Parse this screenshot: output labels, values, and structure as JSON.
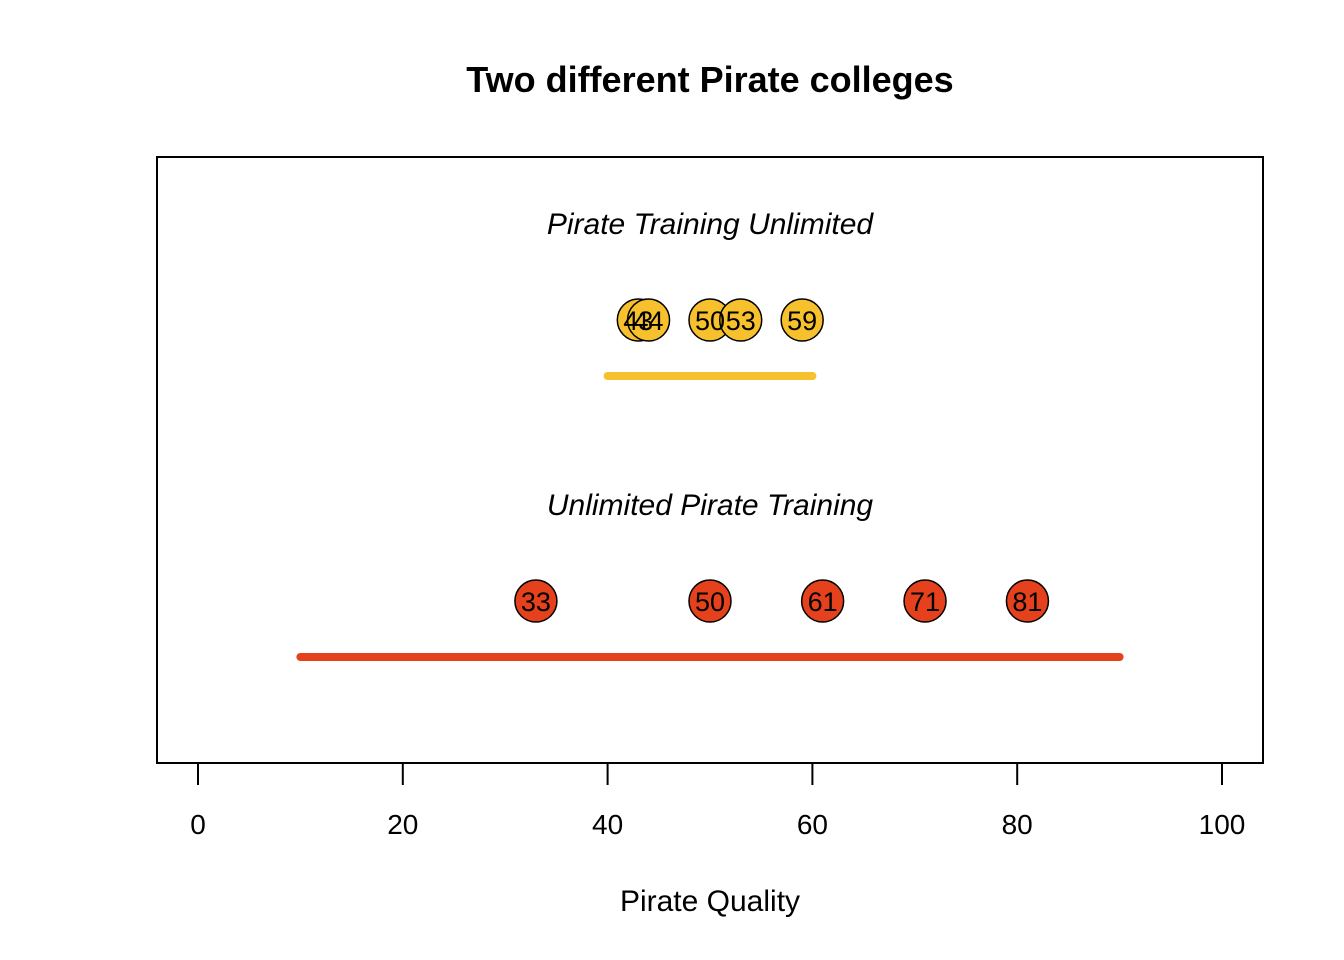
{
  "chart_data": {
    "type": "scatter",
    "title": "Two different Pirate colleges",
    "xlabel": "Pirate Quality",
    "ylabel": "",
    "xlim": [
      0,
      100
    ],
    "x_ticks": [
      0,
      20,
      40,
      60,
      80,
      100
    ],
    "grid": false,
    "legend": "none",
    "series": [
      {
        "name": "Pirate Training Unlimited",
        "color": "#F6C12C",
        "values": [
          43,
          44,
          50,
          53,
          59
        ],
        "range": [
          40,
          60
        ]
      },
      {
        "name": "Unlimited Pirate Training",
        "color": "#E5411C",
        "values": [
          33,
          50,
          61,
          71,
          81
        ],
        "range": [
          10,
          90
        ]
      }
    ]
  }
}
